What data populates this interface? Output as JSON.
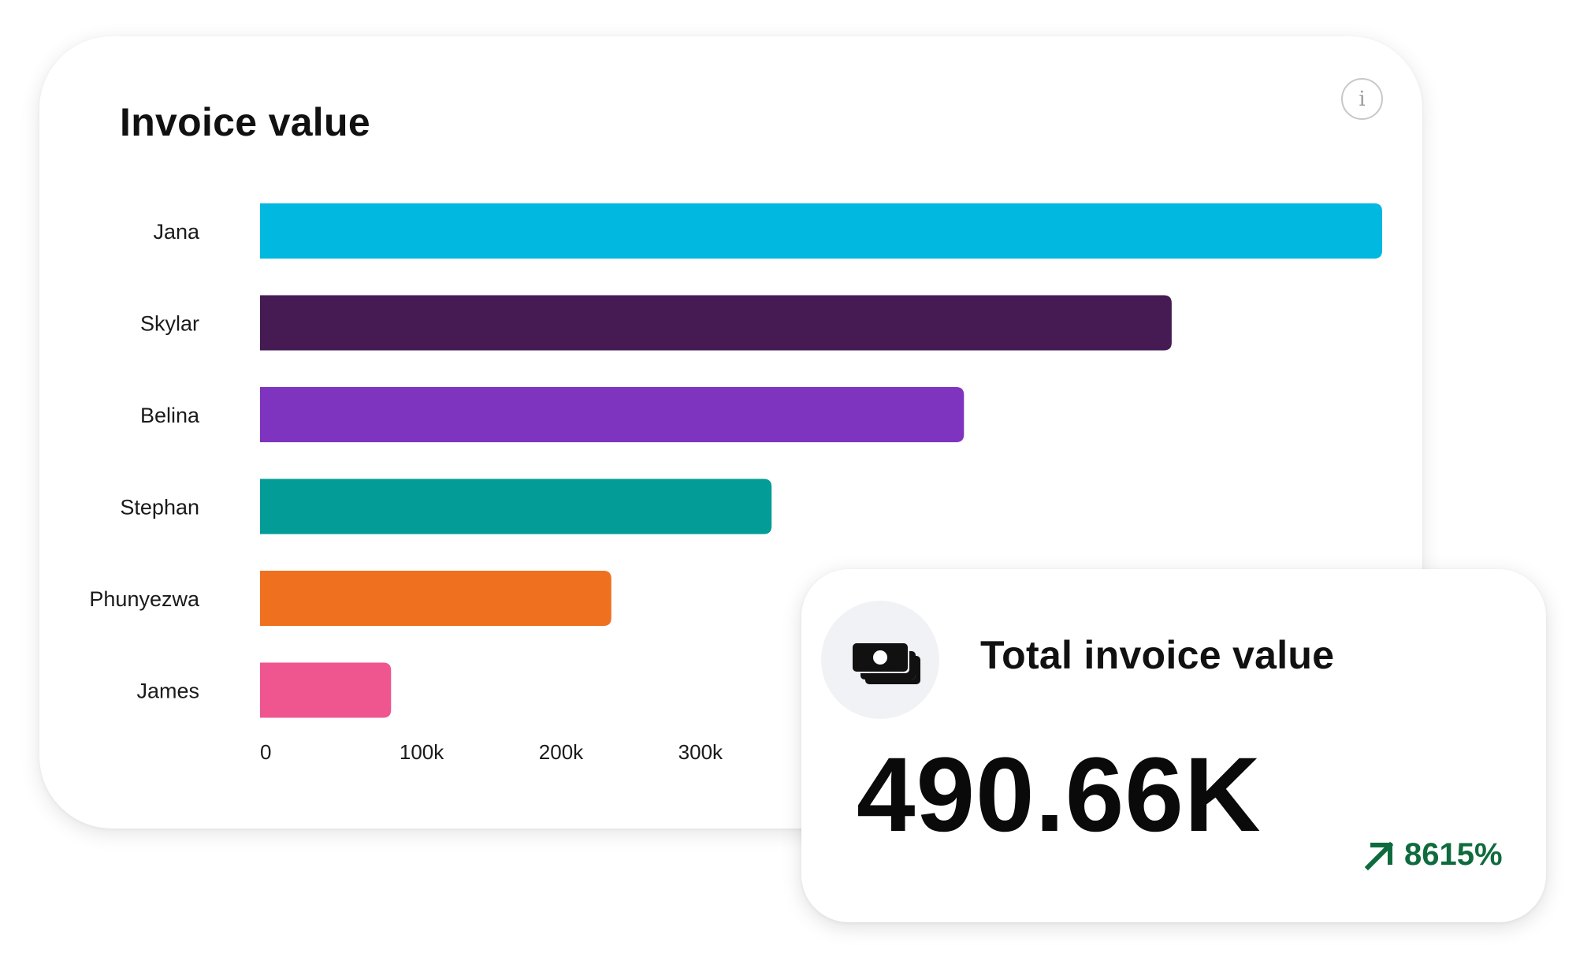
{
  "chart_data": {
    "type": "bar",
    "orientation": "horizontal",
    "title": "Invoice value",
    "categories": [
      "Jana",
      "Skylar",
      "Belina",
      "Stephan",
      "Phunyezwa",
      "James"
    ],
    "values": [
      805000,
      654000,
      505000,
      367000,
      252000,
      94000
    ],
    "colors": [
      "#00b8e0",
      "#461b54",
      "#7e34bf",
      "#039c97",
      "#ef711f",
      "#ef5690"
    ],
    "x_ticks": [
      0,
      100000,
      200000,
      300000
    ],
    "x_tick_labels": [
      "0",
      "100k",
      "200k",
      "300k"
    ],
    "xlim": [
      0,
      805000
    ],
    "xlabel": "",
    "ylabel": "",
    "grid": false,
    "legend": "none"
  },
  "card": {
    "info_icon": "info-icon",
    "info_glyph": "i"
  },
  "kpi": {
    "label": "Total invoice value",
    "value": "490.66K",
    "change": "8615%",
    "change_direction": "up",
    "change_color": "#0f6b3d",
    "icon": "banknotes-icon"
  }
}
